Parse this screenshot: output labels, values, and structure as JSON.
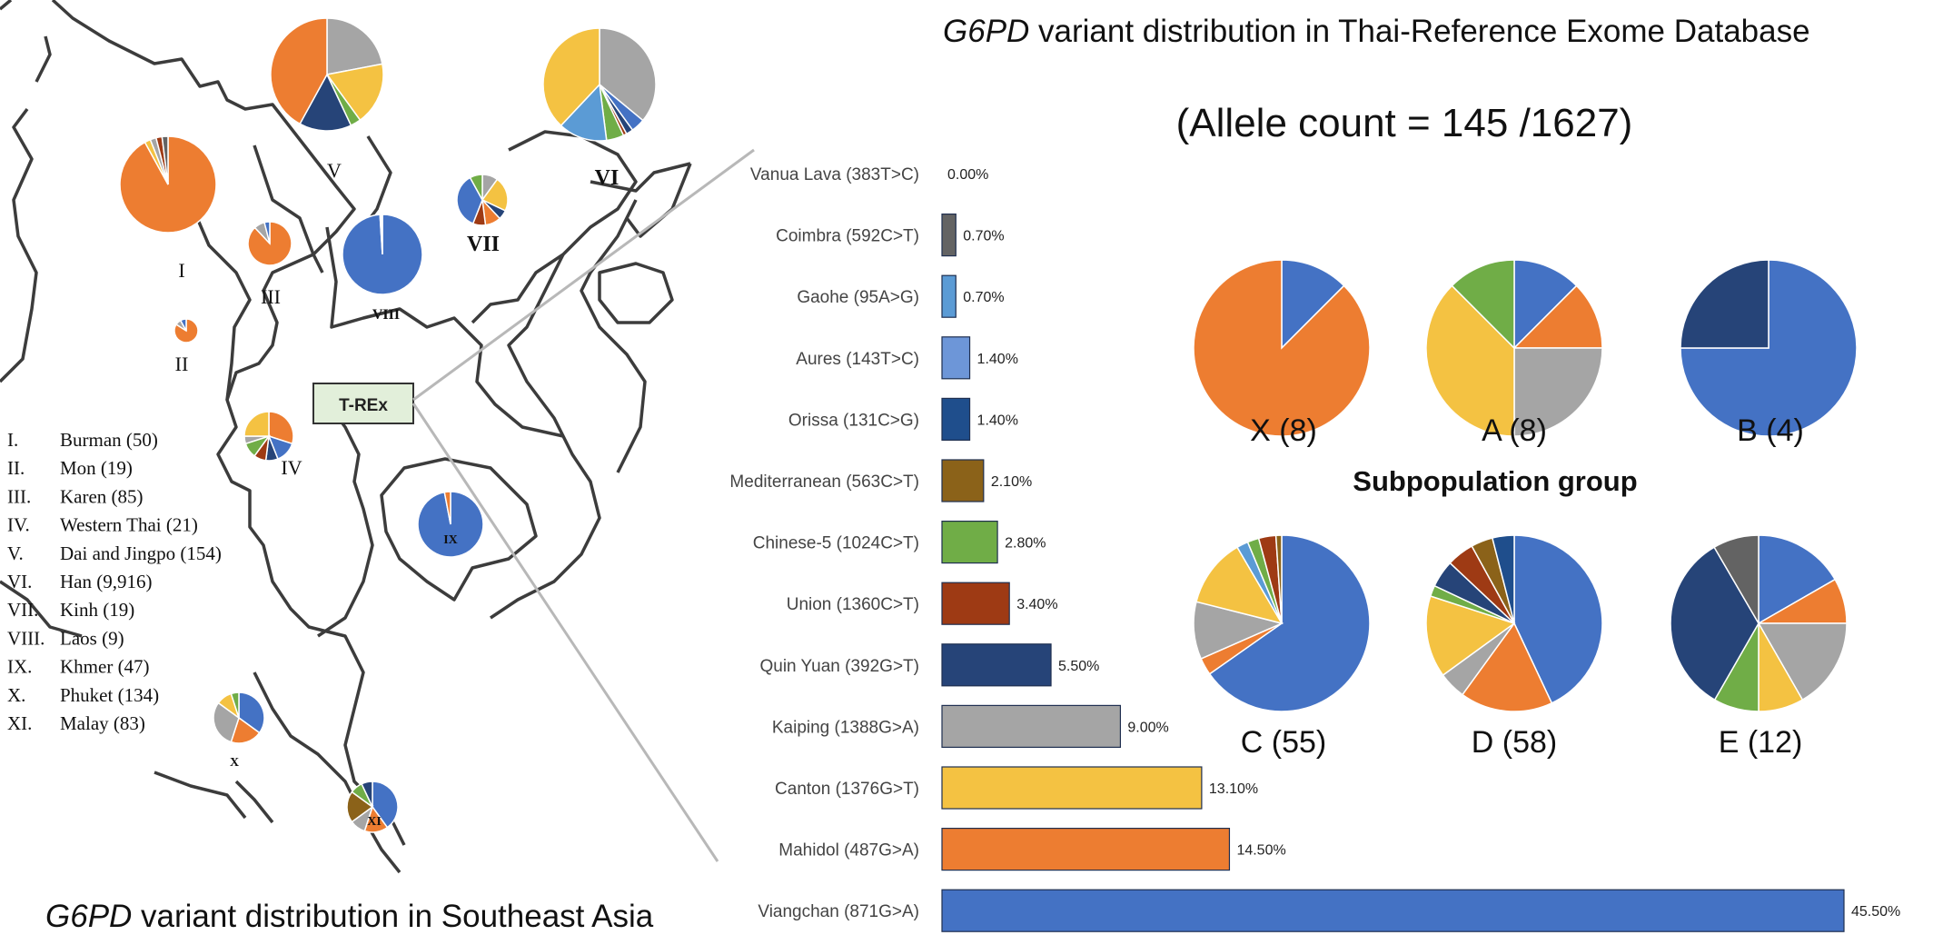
{
  "colors": {
    "viangchan": "#4472C4",
    "mahidol": "#ED7D31",
    "canton": "#F4C242",
    "kaiping": "#A5A5A5",
    "quinyuan": "#264478",
    "union": "#9E3A14",
    "chinese5": "#70AD47",
    "mediterranean": "#8B6219",
    "orissa": "#1F4E8C",
    "aures": "#6D96D8",
    "gaohe": "#5B9BD5",
    "coimbra": "#636363",
    "other_dark": "#3a3a3a"
  },
  "title": {
    "italic": "G6PD",
    "rest": " variant distribution in Thai-Reference Exome Database"
  },
  "allele_count": "(Allele count = 145 /1627)",
  "subpop_title": "Subpopulation group",
  "map": {
    "bottom_title_italic": "G6PD",
    "bottom_title_rest": " variant distribution in Southeast Asia",
    "trex_label": "T-REx",
    "region_labels": [
      "I",
      "II",
      "III",
      "IV",
      "V",
      "VI",
      "VII",
      "VIII",
      "IX",
      "X",
      "XI"
    ],
    "legend": [
      {
        "num": "I.",
        "name": "Burman (50)"
      },
      {
        "num": "II.",
        "name": "Mon (19)"
      },
      {
        "num": "III.",
        "name": "Karen (85)"
      },
      {
        "num": "IV.",
        "name": "Western Thai (21)"
      },
      {
        "num": "V.",
        "name": "Dai and Jingpo (154)"
      },
      {
        "num": "VI.",
        "name": "Han (9,916)"
      },
      {
        "num": "VII.",
        "name": "Kinh (19)"
      },
      {
        "num": "VIII.",
        "name": "Laos (9)"
      },
      {
        "num": "IX.",
        "name": "Khmer (47)"
      },
      {
        "num": "X.",
        "name": "Phuket (134)"
      },
      {
        "num": "XI.",
        "name": "Malay (83)"
      }
    ]
  },
  "chart_data": [
    {
      "type": "bar",
      "title": "G6PD variant distribution in Thai-Reference Exome Database",
      "orientation": "horizontal",
      "categories": [
        "Vanua Lava (383T>C)",
        "Coimbra (592C>T)",
        "Gaohe (95A>G)",
        "Aures (143T>C)",
        "Orissa (131C>G)",
        "Mediterranean (563C>T)",
        "Chinese-5 (1024C>T)",
        "Union (1360C>T)",
        "Quin Yuan (392G>T)",
        "Kaiping (1388G>A)",
        "Canton (1376G>T)",
        "Mahidol (487G>A)",
        "Viangchan (871G>A)"
      ],
      "values": [
        0.0,
        0.7,
        0.7,
        1.4,
        1.4,
        2.1,
        2.8,
        3.4,
        5.5,
        9.0,
        13.1,
        14.5,
        45.5
      ],
      "labels": [
        "0.00%",
        "0.70%",
        "0.70%",
        "1.40%",
        "1.40%",
        "2.10%",
        "2.80%",
        "3.40%",
        "5.50%",
        "9.00%",
        "13.10%",
        "14.50%",
        "45.50%"
      ],
      "bar_colors": [
        "#FFFFFF",
        "#636363",
        "#5B9BD5",
        "#6D96D8",
        "#1F4E8C",
        "#8B6219",
        "#70AD47",
        "#9E3A14",
        "#264478",
        "#A5A5A5",
        "#F4C242",
        "#ED7D31",
        "#4472C4"
      ]
    },
    {
      "type": "pie",
      "groups": [
        {
          "label": "X (8)",
          "values": [
            12.5,
            87.5
          ],
          "colors": [
            "#4472C4",
            "#ED7D31"
          ]
        },
        {
          "label": "A (8)",
          "values": [
            12.5,
            12.5,
            25,
            37.5,
            12.5
          ],
          "colors": [
            "#4472C4",
            "#ED7D31",
            "#A5A5A5",
            "#F4C242",
            "#70AD47"
          ]
        },
        {
          "label": "B (4)",
          "values": [
            75,
            25
          ],
          "colors": [
            "#4472C4",
            "#264478"
          ]
        },
        {
          "label": "C (55)",
          "values": [
            62,
            3,
            10,
            12,
            2,
            2,
            3,
            1
          ],
          "colors": [
            "#4472C4",
            "#ED7D31",
            "#A5A5A5",
            "#F4C242",
            "#5B9BD5",
            "#70AD47",
            "#9E3A14",
            "#8B6219"
          ]
        },
        {
          "label": "D (58)",
          "values": [
            43,
            17,
            5,
            15,
            2,
            5,
            5,
            4,
            4
          ],
          "colors": [
            "#4472C4",
            "#ED7D31",
            "#A5A5A5",
            "#F4C242",
            "#70AD47",
            "#264478",
            "#9E3A14",
            "#8B6219",
            "#1F4E8C"
          ]
        },
        {
          "label": "E (12)",
          "values": [
            16.7,
            8.3,
            16.7,
            8.3,
            8.3,
            33.3,
            8.4
          ],
          "colors": [
            "#4472C4",
            "#ED7D31",
            "#A5A5A5",
            "#F4C242",
            "#70AD47",
            "#264478",
            "#636363"
          ]
        }
      ]
    },
    {
      "type": "pie",
      "groups": [
        {
          "label": "I",
          "values": [
            92,
            2,
            2,
            2,
            2
          ],
          "colors": [
            "#ED7D31",
            "#F4C242",
            "#A5A5A5",
            "#9E3A14",
            "#636363"
          ]
        },
        {
          "label": "II",
          "values": [
            84,
            8,
            8
          ],
          "colors": [
            "#ED7D31",
            "#A5A5A5",
            "#4472C4"
          ]
        },
        {
          "label": "III",
          "values": [
            88,
            8,
            4
          ],
          "colors": [
            "#ED7D31",
            "#A5A5A5",
            "#4472C4"
          ]
        },
        {
          "label": "IV",
          "values": [
            30,
            14,
            8,
            8,
            10,
            5,
            25
          ],
          "colors": [
            "#ED7D31",
            "#4472C4",
            "#264478",
            "#9E3A14",
            "#70AD47",
            "#A5A5A5",
            "#F4C242"
          ]
        },
        {
          "label": "V",
          "values": [
            22,
            18,
            3,
            15,
            42
          ],
          "colors": [
            "#A5A5A5",
            "#F4C242",
            "#70AD47",
            "#264478",
            "#ED7D31"
          ]
        },
        {
          "label": "VI",
          "values": [
            36,
            4,
            2,
            1,
            5,
            14,
            38
          ],
          "colors": [
            "#A5A5A5",
            "#4472C4",
            "#264478",
            "#9E3A14",
            "#70AD47",
            "#5B9BD5",
            "#F4C242"
          ]
        },
        {
          "label": "VII",
          "values": [
            10,
            22,
            6,
            10,
            8,
            36,
            8
          ],
          "colors": [
            "#A5A5A5",
            "#F4C242",
            "#264478",
            "#ED7D31",
            "#9E3A14",
            "#4472C4",
            "#70AD47"
          ]
        },
        {
          "label": "VIII",
          "values": [
            99,
            1
          ],
          "colors": [
            "#4472C4",
            "#ffffff"
          ]
        },
        {
          "label": "IX",
          "values": [
            97,
            3
          ],
          "colors": [
            "#4472C4",
            "#ED7D31"
          ]
        },
        {
          "label": "X",
          "values": [
            35,
            20,
            30,
            10,
            5
          ],
          "colors": [
            "#4472C4",
            "#ED7D31",
            "#A5A5A5",
            "#F4C242",
            "#70AD47"
          ]
        },
        {
          "label": "XI",
          "values": [
            40,
            15,
            10,
            20,
            8,
            7
          ],
          "colors": [
            "#4472C4",
            "#ED7D31",
            "#A5A5A5",
            "#8B6219",
            "#70AD47",
            "#264478"
          ]
        }
      ]
    }
  ]
}
